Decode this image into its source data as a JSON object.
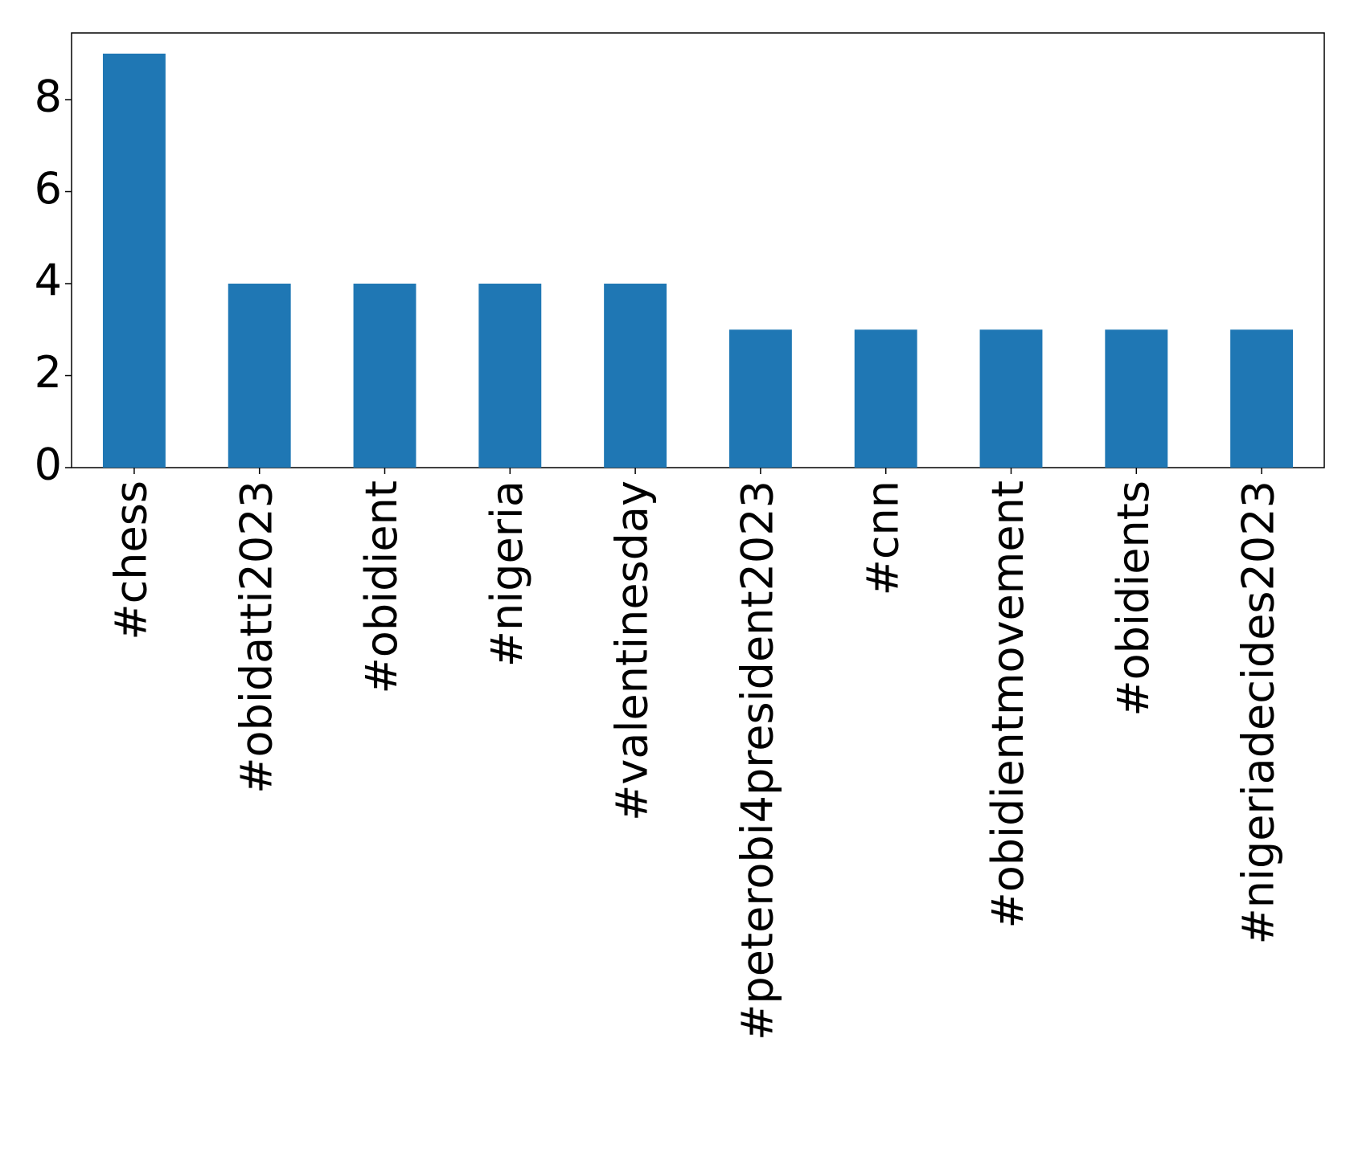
{
  "chart_data": {
    "type": "bar",
    "categories": [
      "#chess",
      "#obidatti2023",
      "#obidient",
      "#nigeria",
      "#valentinesday",
      "#peterobi4president2023",
      "#cnn",
      "#obidientmovement",
      "#obidients",
      "#nigeriadecides2023"
    ],
    "values": [
      9,
      4,
      4,
      4,
      4,
      3,
      3,
      3,
      3,
      3
    ],
    "color": "#1f77b4",
    "ylim": [
      0,
      9.45
    ],
    "yticks": [
      0,
      2,
      4,
      6,
      8
    ],
    "grid": false
  }
}
